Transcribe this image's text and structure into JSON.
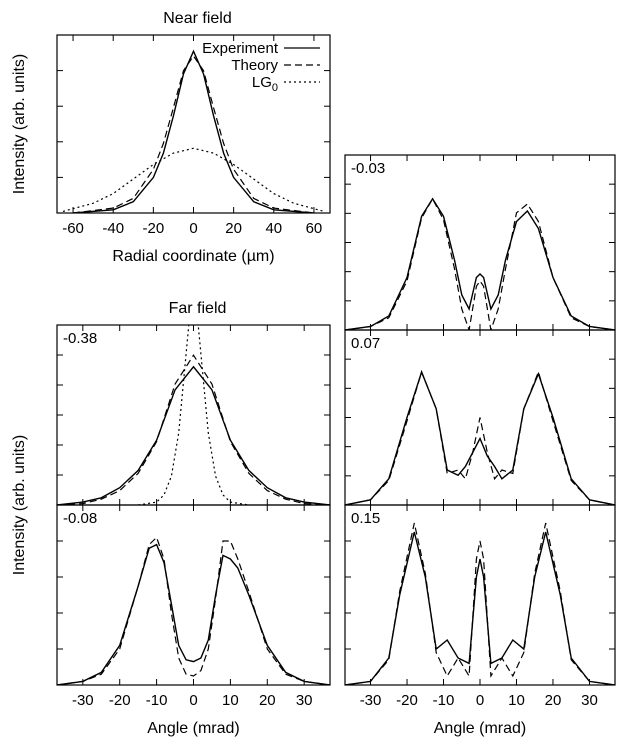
{
  "chart_data": [
    {
      "type": "line",
      "title": "Near field",
      "xlabel": "Radial coordinate (µm)",
      "ylabel": "Intensity (arb. units)",
      "xlim": [
        -68,
        68
      ],
      "ylim": [
        0,
        1.1
      ],
      "xticks": [
        -60,
        -40,
        -20,
        0,
        20,
        40,
        60
      ],
      "grid": false,
      "legend_position": "top-right",
      "series": [
        {
          "name": "Experiment",
          "style": "solid",
          "x": [
            -60,
            -40,
            -30,
            -20,
            -15,
            -10,
            -5,
            0,
            5,
            10,
            15,
            20,
            30,
            40,
            60
          ],
          "y": [
            0.0,
            0.02,
            0.07,
            0.22,
            0.37,
            0.6,
            0.86,
            1.0,
            0.86,
            0.6,
            0.37,
            0.22,
            0.07,
            0.02,
            0.0
          ]
        },
        {
          "name": "Theory",
          "style": "dashed",
          "x": [
            -60,
            -40,
            -30,
            -20,
            -15,
            -10,
            -5,
            0,
            5,
            10,
            15,
            20,
            30,
            40,
            60
          ],
          "y": [
            0.0,
            0.03,
            0.09,
            0.27,
            0.43,
            0.65,
            0.88,
            0.97,
            0.88,
            0.65,
            0.43,
            0.27,
            0.09,
            0.03,
            0.0
          ]
        },
        {
          "name": "LG0",
          "name_main": "LG",
          "name_sub": "0",
          "style": "dotted",
          "x": [
            -65,
            -50,
            -40,
            -30,
            -20,
            -10,
            0,
            10,
            20,
            30,
            40,
            50,
            65
          ],
          "y": [
            0.01,
            0.06,
            0.12,
            0.21,
            0.3,
            0.37,
            0.4,
            0.37,
            0.3,
            0.21,
            0.12,
            0.06,
            0.01
          ]
        }
      ]
    },
    {
      "type": "line",
      "title": "Far field",
      "annotation": "-0.38",
      "xlim": [
        -37,
        37
      ],
      "ylim": [
        0,
        1.25
      ],
      "ylabel": "Intensity (arb. units)",
      "series": [
        {
          "name": "Experiment",
          "style": "solid",
          "x": [
            -37,
            -30,
            -25,
            -20,
            -15,
            -10,
            -5,
            0,
            5,
            10,
            15,
            20,
            25,
            30,
            37
          ],
          "y": [
            0.0,
            0.02,
            0.05,
            0.12,
            0.24,
            0.45,
            0.8,
            0.96,
            0.8,
            0.45,
            0.24,
            0.12,
            0.05,
            0.02,
            0.0
          ]
        },
        {
          "name": "Theory",
          "style": "dashed",
          "x": [
            -37,
            -30,
            -25,
            -20,
            -15,
            -10,
            -5,
            0,
            5,
            10,
            15,
            20,
            25,
            30,
            37
          ],
          "y": [
            0.0,
            0.01,
            0.04,
            0.1,
            0.22,
            0.44,
            0.84,
            1.04,
            0.84,
            0.44,
            0.22,
            0.1,
            0.04,
            0.01,
            0.0
          ]
        },
        {
          "name": "LG0",
          "style": "dotted",
          "x": [
            -15,
            -10,
            -8,
            -6,
            -4,
            -2,
            0,
            2,
            4,
            6,
            8,
            10,
            15
          ],
          "y": [
            0.0,
            0.02,
            0.07,
            0.2,
            0.5,
            1.05,
            1.6,
            1.05,
            0.5,
            0.2,
            0.07,
            0.02,
            0.0
          ]
        }
      ]
    },
    {
      "type": "line",
      "annotation": "-0.08",
      "xlabel": "Angle (mrad)",
      "xlim": [
        -37,
        37
      ],
      "ylim": [
        0,
        1.0
      ],
      "xticks": [
        -30,
        -20,
        -10,
        0,
        10,
        20,
        30
      ],
      "series": [
        {
          "name": "Experiment",
          "style": "solid",
          "x": [
            -37,
            -30,
            -25,
            -20,
            -15,
            -12,
            -10,
            -8,
            -6,
            -4,
            -2,
            0,
            2,
            4,
            6,
            8,
            10,
            12,
            15,
            20,
            25,
            30,
            37
          ],
          "y": [
            0.0,
            0.02,
            0.07,
            0.22,
            0.55,
            0.76,
            0.78,
            0.68,
            0.45,
            0.22,
            0.14,
            0.13,
            0.15,
            0.25,
            0.5,
            0.72,
            0.7,
            0.65,
            0.5,
            0.22,
            0.07,
            0.02,
            0.0
          ]
        },
        {
          "name": "Theory",
          "style": "dashed",
          "x": [
            -37,
            -30,
            -25,
            -20,
            -15,
            -12,
            -10,
            -8,
            -6,
            -4,
            -2,
            0,
            2,
            4,
            6,
            8,
            10,
            12,
            15,
            20,
            25,
            30,
            37
          ],
          "y": [
            0.0,
            0.02,
            0.06,
            0.2,
            0.55,
            0.78,
            0.82,
            0.7,
            0.4,
            0.15,
            0.06,
            0.05,
            0.08,
            0.2,
            0.48,
            0.8,
            0.8,
            0.7,
            0.52,
            0.2,
            0.06,
            0.02,
            0.0
          ]
        }
      ]
    },
    {
      "type": "line",
      "annotation": "-0.03",
      "xlim": [
        -37,
        37
      ],
      "ylim": [
        0,
        1.0
      ],
      "series": [
        {
          "name": "Experiment",
          "style": "solid",
          "x": [
            -37,
            -30,
            -25,
            -20,
            -16,
            -13,
            -10,
            -7,
            -5,
            -3,
            -1,
            0,
            1,
            3,
            5,
            7,
            10,
            13,
            16,
            20,
            25,
            30,
            37
          ],
          "y": [
            0.0,
            0.02,
            0.08,
            0.3,
            0.65,
            0.75,
            0.65,
            0.4,
            0.2,
            0.12,
            0.3,
            0.32,
            0.3,
            0.12,
            0.2,
            0.4,
            0.62,
            0.68,
            0.58,
            0.3,
            0.08,
            0.02,
            0.0
          ]
        },
        {
          "name": "Theory",
          "style": "dashed",
          "x": [
            -37,
            -30,
            -25,
            -20,
            -16,
            -13,
            -10,
            -7,
            -5,
            -3,
            -1,
            0,
            1,
            3,
            5,
            7,
            10,
            13,
            16,
            20,
            25,
            30,
            37
          ],
          "y": [
            0.0,
            0.02,
            0.07,
            0.28,
            0.64,
            0.75,
            0.63,
            0.35,
            0.12,
            0.0,
            0.25,
            0.28,
            0.25,
            0.0,
            0.12,
            0.35,
            0.67,
            0.72,
            0.62,
            0.3,
            0.07,
            0.02,
            0.0
          ]
        }
      ]
    },
    {
      "type": "line",
      "annotation": "0.07",
      "xlim": [
        -37,
        37
      ],
      "ylim": [
        0,
        1.0
      ],
      "series": [
        {
          "name": "Experiment",
          "style": "solid",
          "x": [
            -37,
            -30,
            -25,
            -20,
            -16,
            -12,
            -9,
            -6,
            -4,
            -2,
            0,
            2,
            4,
            6,
            9,
            12,
            16,
            20,
            25,
            30,
            37
          ],
          "y": [
            0.0,
            0.03,
            0.15,
            0.5,
            0.76,
            0.55,
            0.2,
            0.17,
            0.22,
            0.3,
            0.38,
            0.28,
            0.22,
            0.15,
            0.2,
            0.55,
            0.75,
            0.5,
            0.15,
            0.03,
            0.0
          ]
        },
        {
          "name": "Theory",
          "style": "dashed",
          "x": [
            -37,
            -30,
            -25,
            -20,
            -16,
            -12,
            -9,
            -6,
            -4,
            -2,
            0,
            2,
            4,
            6,
            9,
            12,
            16,
            20,
            25,
            30,
            37
          ],
          "y": [
            0.0,
            0.03,
            0.14,
            0.48,
            0.76,
            0.55,
            0.18,
            0.2,
            0.15,
            0.3,
            0.5,
            0.3,
            0.15,
            0.2,
            0.18,
            0.55,
            0.76,
            0.48,
            0.14,
            0.03,
            0.0
          ]
        }
      ]
    },
    {
      "type": "line",
      "annotation": "0.15",
      "xlabel": "Angle (mrad)",
      "xlim": [
        -37,
        37
      ],
      "ylim": [
        0,
        1.0
      ],
      "xticks": [
        -30,
        -20,
        -10,
        0,
        10,
        20,
        30
      ],
      "series": [
        {
          "name": "Experiment",
          "style": "solid",
          "x": [
            -37,
            -30,
            -25,
            -22,
            -18,
            -15,
            -12,
            -9,
            -6,
            -3,
            -1,
            0,
            1,
            3,
            6,
            9,
            12,
            15,
            18,
            22,
            25,
            30,
            37
          ],
          "y": [
            0.0,
            0.02,
            0.15,
            0.5,
            0.85,
            0.6,
            0.2,
            0.25,
            0.15,
            0.12,
            0.6,
            0.7,
            0.6,
            0.12,
            0.15,
            0.25,
            0.2,
            0.6,
            0.85,
            0.5,
            0.15,
            0.02,
            0.0
          ]
        },
        {
          "name": "Theory",
          "style": "dashed",
          "x": [
            -37,
            -30,
            -25,
            -22,
            -18,
            -15,
            -12,
            -9,
            -6,
            -3,
            -1,
            0,
            1,
            3,
            6,
            9,
            12,
            15,
            18,
            22,
            25,
            30,
            37
          ],
          "y": [
            0.0,
            0.02,
            0.14,
            0.52,
            0.9,
            0.62,
            0.18,
            0.05,
            0.15,
            0.05,
            0.7,
            0.8,
            0.7,
            0.05,
            0.15,
            0.05,
            0.18,
            0.62,
            0.9,
            0.52,
            0.14,
            0.02,
            0.0
          ]
        }
      ]
    }
  ]
}
